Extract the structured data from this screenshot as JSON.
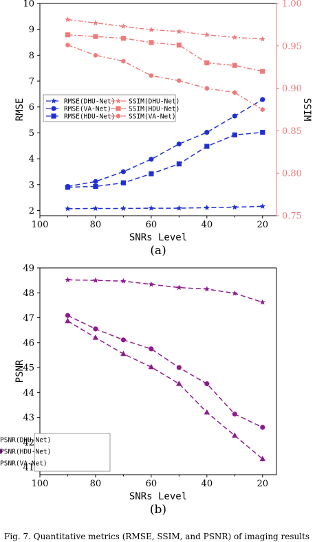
{
  "caption": "Fig. 7.  Quantitative metrics (RMSE, SSIM, and PSNR) of imaging results",
  "chart_data": [
    {
      "type": "line",
      "panel_label": "(a)",
      "xlabel": "SNRs Level",
      "ylabel": "RMSE",
      "ylabel_right": "SSIM",
      "x": [
        90,
        80,
        70,
        60,
        50,
        40,
        30,
        20
      ],
      "xlim": [
        100,
        15
      ],
      "ylim": [
        1.8,
        10
      ],
      "ylim_right": [
        0.75,
        1.0
      ],
      "xticks": [
        "100",
        "80",
        "60",
        "40",
        "20"
      ],
      "yticks": [
        "2",
        "3",
        "4",
        "5",
        "6",
        "7",
        "8",
        "9",
        "10"
      ],
      "yticks_right": [
        "0.75",
        "0.80",
        "0.85",
        "0.90",
        "0.95",
        "1.00"
      ],
      "grid": false,
      "legend_position": "middle-center",
      "colors": {
        "rmse": "#1f2fd6",
        "ssim": "#f07a7a"
      },
      "series": [
        {
          "name": "RMSE(DHU-Net)",
          "axis": "left",
          "marker": "star",
          "values": [
            2.07,
            2.08,
            2.08,
            2.09,
            2.09,
            2.11,
            2.13,
            2.16
          ]
        },
        {
          "name": "RMSE(VA-Net)",
          "axis": "left",
          "marker": "circle",
          "values": [
            2.93,
            3.12,
            3.5,
            3.98,
            4.57,
            5.02,
            5.65,
            6.29
          ]
        },
        {
          "name": "RMSE(HDU-Net)",
          "axis": "left",
          "marker": "square",
          "values": [
            2.9,
            2.93,
            3.07,
            3.42,
            3.8,
            4.48,
            4.92,
            5.02
          ]
        },
        {
          "name": "SSIM(DHU-Net)",
          "axis": "right",
          "marker": "star",
          "values": [
            0.981,
            0.977,
            0.973,
            0.969,
            0.967,
            0.963,
            0.96,
            0.958
          ]
        },
        {
          "name": "SSIM(HDU-Net)",
          "axis": "right",
          "marker": "square",
          "values": [
            0.963,
            0.961,
            0.959,
            0.954,
            0.951,
            0.93,
            0.927,
            0.92
          ]
        },
        {
          "name": "SSIM(VA-Net)",
          "axis": "right",
          "marker": "hexagon",
          "values": [
            0.951,
            0.939,
            0.932,
            0.915,
            0.909,
            0.9,
            0.895,
            0.875
          ]
        }
      ]
    },
    {
      "type": "line",
      "panel_label": "(b)",
      "xlabel": "SNRs Level",
      "ylabel": "PSNR",
      "x": [
        90,
        80,
        70,
        60,
        50,
        40,
        30,
        20
      ],
      "xlim": [
        100,
        15
      ],
      "ylim": [
        40.7,
        49
      ],
      "xticks": [
        "100",
        "80",
        "60",
        "40",
        "20"
      ],
      "yticks": [
        "41",
        "42",
        "43",
        "44",
        "45",
        "46",
        "47",
        "48",
        "49"
      ],
      "grid": false,
      "legend_position": "bottom-left",
      "colors": {
        "psnr": "#8e1a8e"
      },
      "series": [
        {
          "name": "PSNR(DHU-Net)",
          "marker": "star",
          "values": [
            48.52,
            48.5,
            48.47,
            48.34,
            48.21,
            48.15,
            47.98,
            47.62
          ]
        },
        {
          "name": "PSNR(HDU-Net)",
          "marker": "circle",
          "values": [
            47.09,
            46.55,
            46.11,
            45.75,
            45.0,
            44.35,
            43.13,
            42.6
          ]
        },
        {
          "name": "PSNR(VA-Net)",
          "marker": "triangle",
          "values": [
            46.87,
            46.2,
            45.55,
            45.02,
            44.35,
            43.2,
            42.27,
            41.33
          ]
        }
      ]
    }
  ]
}
